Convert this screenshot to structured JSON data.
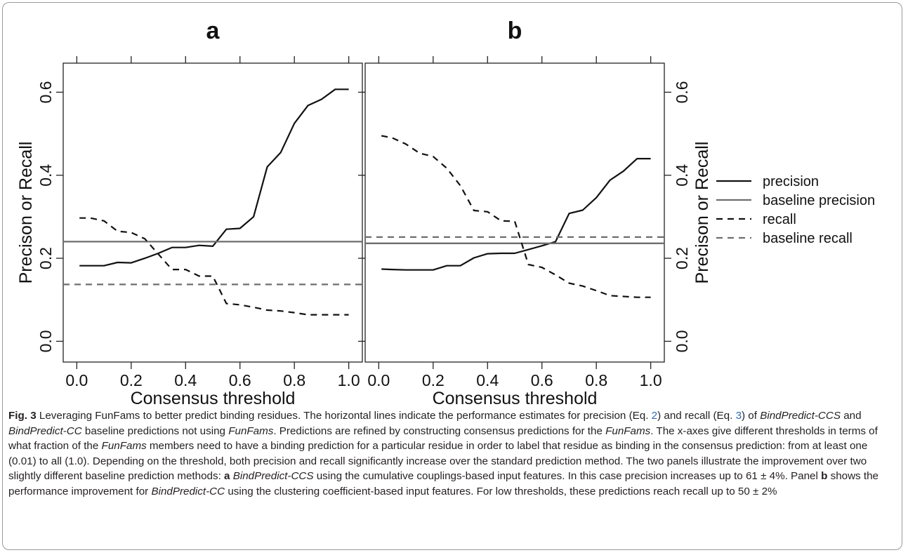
{
  "chart_data": [
    {
      "panel_label": "a",
      "type": "line",
      "xlabel": "Consensus threshold",
      "ylabel": "Precison or Recall",
      "xlim": [
        -0.05,
        1.05
      ],
      "ylim": [
        -0.05,
        0.67
      ],
      "xticks": [
        "0.0",
        "0.2",
        "0.4",
        "0.6",
        "0.8",
        "1.0"
      ],
      "yticks": [
        "0.0",
        "0.2",
        "0.4",
        "0.6"
      ],
      "yaxis_side": "left",
      "series": [
        {
          "name": "precision",
          "x": [
            0.01,
            0.05,
            0.1,
            0.15,
            0.2,
            0.25,
            0.3,
            0.35,
            0.4,
            0.45,
            0.5,
            0.55,
            0.6,
            0.65,
            0.7,
            0.75,
            0.8,
            0.85,
            0.9,
            0.95,
            1.0
          ],
          "y": [
            0.182,
            0.182,
            0.182,
            0.19,
            0.189,
            0.2,
            0.212,
            0.226,
            0.226,
            0.231,
            0.229,
            0.27,
            0.272,
            0.3,
            0.42,
            0.455,
            0.525,
            0.568,
            0.583,
            0.607,
            0.607
          ]
        },
        {
          "name": "baseline precision",
          "x": [
            -0.05,
            1.05
          ],
          "y": [
            0.24,
            0.24
          ]
        },
        {
          "name": "recall",
          "x": [
            0.01,
            0.05,
            0.1,
            0.15,
            0.2,
            0.25,
            0.3,
            0.35,
            0.4,
            0.45,
            0.5,
            0.55,
            0.6,
            0.65,
            0.7,
            0.75,
            0.8,
            0.85,
            0.9,
            0.95,
            1.0
          ],
          "y": [
            0.297,
            0.297,
            0.29,
            0.265,
            0.262,
            0.247,
            0.21,
            0.173,
            0.173,
            0.157,
            0.157,
            0.091,
            0.088,
            0.082,
            0.075,
            0.073,
            0.069,
            0.064,
            0.064,
            0.064,
            0.064
          ]
        },
        {
          "name": "baseline recall",
          "x": [
            -0.05,
            1.05
          ],
          "y": [
            0.137,
            0.137
          ]
        }
      ]
    },
    {
      "panel_label": "b",
      "type": "line",
      "xlabel": "Consensus threshold",
      "ylabel": "Precison or Recall",
      "xlim": [
        -0.05,
        1.05
      ],
      "ylim": [
        -0.05,
        0.67
      ],
      "xticks": [
        "0.0",
        "0.2",
        "0.4",
        "0.6",
        "0.8",
        "1.0"
      ],
      "yticks": [
        "0.0",
        "0.2",
        "0.4",
        "0.6"
      ],
      "yaxis_side": "right",
      "series": [
        {
          "name": "precision",
          "x": [
            0.01,
            0.05,
            0.1,
            0.15,
            0.2,
            0.25,
            0.3,
            0.35,
            0.4,
            0.45,
            0.5,
            0.55,
            0.6,
            0.65,
            0.7,
            0.75,
            0.8,
            0.85,
            0.9,
            0.95,
            1.0
          ],
          "y": [
            0.174,
            0.173,
            0.172,
            0.172,
            0.172,
            0.182,
            0.182,
            0.201,
            0.211,
            0.212,
            0.212,
            0.221,
            0.23,
            0.24,
            0.308,
            0.316,
            0.346,
            0.388,
            0.41,
            0.44,
            0.44
          ]
        },
        {
          "name": "baseline precision",
          "x": [
            -0.05,
            1.05
          ],
          "y": [
            0.236,
            0.236
          ]
        },
        {
          "name": "recall",
          "x": [
            0.01,
            0.05,
            0.1,
            0.15,
            0.2,
            0.25,
            0.3,
            0.35,
            0.4,
            0.45,
            0.5,
            0.55,
            0.6,
            0.65,
            0.7,
            0.75,
            0.8,
            0.85,
            0.9,
            0.95,
            1.0
          ],
          "y": [
            0.495,
            0.49,
            0.475,
            0.453,
            0.445,
            0.417,
            0.375,
            0.315,
            0.312,
            0.29,
            0.289,
            0.185,
            0.178,
            0.16,
            0.14,
            0.133,
            0.122,
            0.11,
            0.108,
            0.106,
            0.106
          ]
        },
        {
          "name": "baseline recall",
          "x": [
            -0.05,
            1.05
          ],
          "y": [
            0.251,
            0.251
          ]
        }
      ]
    }
  ],
  "legend": {
    "placement": "right",
    "entries": [
      {
        "label": "precision",
        "color": "#111111",
        "dash": "solid"
      },
      {
        "label": "baseline precision",
        "color": "#6e6e6e",
        "dash": "solid"
      },
      {
        "label": "recall",
        "color": "#111111",
        "dash": "dashed"
      },
      {
        "label": "baseline recall",
        "color": "#6e6e6e",
        "dash": "dashed"
      }
    ]
  },
  "colors": {
    "main_line": "#111111",
    "baseline_line": "#6e6e6e",
    "caption_text": "#231f20",
    "link": "#2f6db5"
  },
  "caption": {
    "fig_label": "Fig. 3",
    "s1": " Leveraging FunFams to better predict binding residues. The horizontal lines indicate the performance estimates for precision (Eq. ",
    "eq2": "2",
    "s2": ") and recall (Eq. ",
    "eq3": "3",
    "s3": ") of ",
    "it1": "BindPredict-CCS",
    "s4": " and ",
    "it2": "BindPredict-CC",
    "s5": " baseline predictions not using ",
    "it3": "FunFams",
    "s6": ". Predictions are refined by constructing consensus predictions for the ",
    "it4": "FunFams",
    "s7": ". The x-axes give different thresholds in terms of what fraction of the ",
    "it5": "FunFams",
    "s8": " members need to have a binding prediction for a particular residue in order to label that residue as binding in the consensus prediction: from at least one (0.01) to all (1.0). Depending on the threshold, both precision and recall significantly increase over the standard prediction method. The two panels illustrate the improvement over two slightly different baseline prediction methods: ",
    "b1": "a",
    "s9": " ",
    "it6": "BindPredict-CCS",
    "s10": " using the cumulative couplings-based input features. In this case precision increases up to 61 ± 4%. Panel ",
    "b2": "b",
    "s11": " shows the performance improvement for ",
    "it7": "BindPredict-CC",
    "s12": " using the clustering coefficient-based input features. For low thresholds, these predictions reach recall up to 50 ± 2%"
  }
}
